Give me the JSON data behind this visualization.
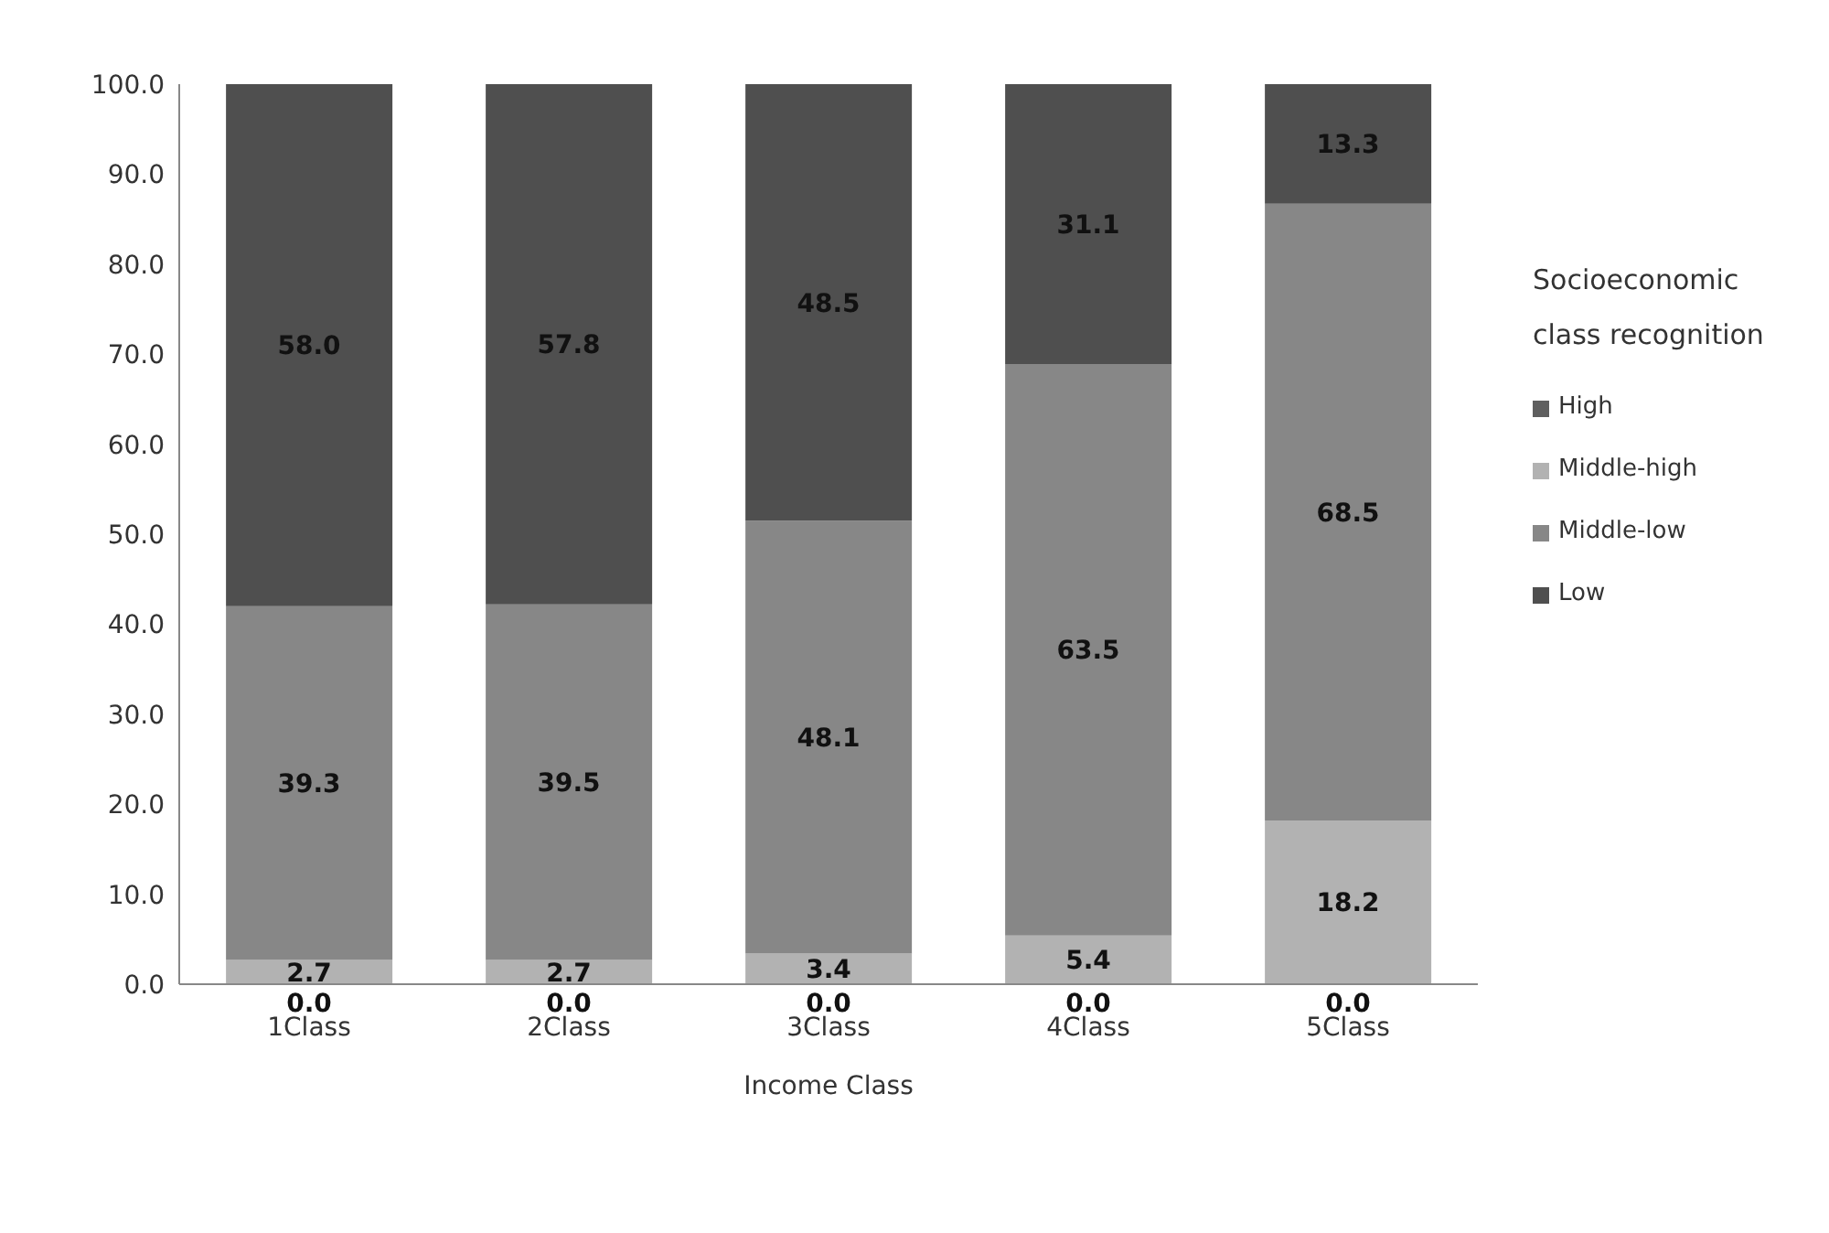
{
  "chart_data": {
    "type": "bar",
    "stacked": true,
    "xlabel": "Income Class",
    "legend_title": "Socioeconomic class recognition",
    "legend": "right",
    "categories": [
      "1Class",
      "2Class",
      "3Class",
      "4Class",
      "5Class"
    ],
    "series": [
      {
        "name": "High",
        "color": "#5f5f5f",
        "values": [
          0,
          0,
          0,
          0,
          0
        ],
        "value_labels": [
          "0.0",
          "0.0",
          "0.0",
          "0.0",
          "0.0"
        ]
      },
      {
        "name": "Middle-high",
        "color": "#b2b2b2",
        "values": [
          2.7,
          2.7,
          3.4,
          5.4,
          18.2
        ],
        "value_labels": [
          "2.7",
          "2.7",
          "3.4",
          "5.4",
          "18.2"
        ]
      },
      {
        "name": "Middle-low",
        "color": "#878787",
        "values": [
          39.3,
          39.5,
          48.1,
          63.5,
          68.5
        ],
        "value_labels": [
          "39.3",
          "39.5",
          "48.1",
          "63.5",
          "68.5"
        ]
      },
      {
        "name": "Low",
        "color": "#4f4f4f",
        "values": [
          58.0,
          57.8,
          48.5,
          31.1,
          13.3
        ],
        "value_labels": [
          "58.0",
          "57.8",
          "48.5",
          "31.1",
          "13.3"
        ]
      }
    ],
    "ylim": [
      0,
      100
    ],
    "yticks": [
      {
        "value": 0,
        "label": "0.0"
      },
      {
        "value": 10,
        "label": "10.0"
      },
      {
        "value": 20,
        "label": "20.0"
      },
      {
        "value": 30,
        "label": "30.0"
      },
      {
        "value": 40,
        "label": "40.0"
      },
      {
        "value": 50,
        "label": "50.0"
      },
      {
        "value": 60,
        "label": "60.0"
      },
      {
        "value": 70,
        "label": "70.0"
      },
      {
        "value": 80,
        "label": "80.0"
      },
      {
        "value": 90,
        "label": "90.0"
      },
      {
        "value": 100,
        "label": "100.0"
      }
    ],
    "grid": false
  }
}
